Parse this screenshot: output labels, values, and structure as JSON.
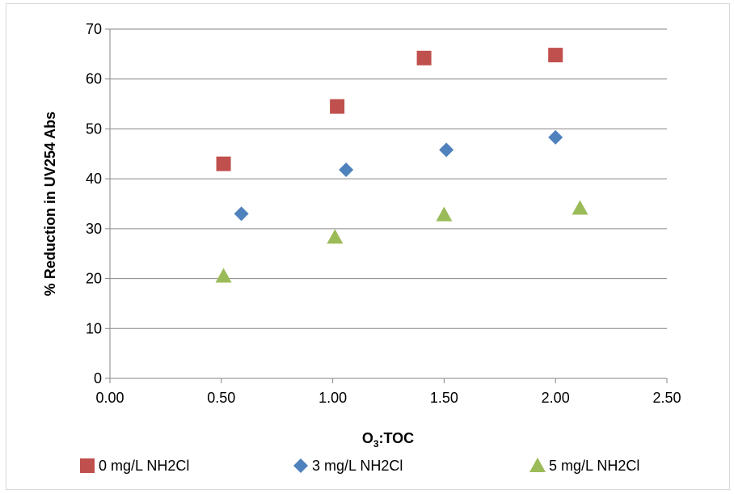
{
  "chart_data": {
    "type": "scatter",
    "title": "",
    "xlabel_main": "O",
    "xlabel_sub": "3",
    "xlabel_rest": ":TOC",
    "ylabel": "% Reduction in UV254 Abs",
    "xlim": [
      0,
      2.5
    ],
    "ylim": [
      0,
      70
    ],
    "xticks": [
      "0.00",
      "0.50",
      "1.00",
      "1.50",
      "2.00",
      "2.50"
    ],
    "yticks": [
      "0",
      "10",
      "20",
      "30",
      "40",
      "50",
      "60",
      "70"
    ],
    "grid": "horizontal",
    "legend_position": "bottom",
    "series": [
      {
        "name": "0 mg/L NH2Cl",
        "marker": "square",
        "color": "#c0504d",
        "x": [
          0.51,
          1.02,
          1.41,
          2.0
        ],
        "y": [
          43.0,
          54.5,
          64.2,
          64.8
        ]
      },
      {
        "name": "3 mg/L NH2Cl",
        "marker": "diamond",
        "color": "#4f81bd",
        "x": [
          0.59,
          1.06,
          1.51,
          2.0
        ],
        "y": [
          33.0,
          41.8,
          45.8,
          48.3
        ]
      },
      {
        "name": "5 mg/L NH2Cl",
        "marker": "triangle",
        "color": "#9bbb59",
        "x": [
          0.51,
          1.01,
          1.5,
          2.11
        ],
        "y": [
          20.5,
          28.3,
          32.8,
          34.1
        ]
      }
    ]
  }
}
